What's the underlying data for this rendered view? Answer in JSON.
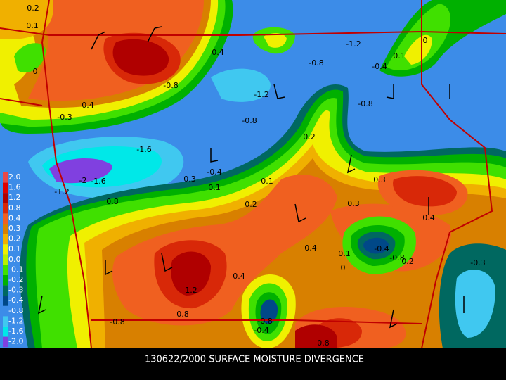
{
  "caption": "130622/2000 SURFACE MOISTURE DIVERGENCE",
  "legend": [
    {
      "label": "2.0",
      "color": "#e84848"
    },
    {
      "label": "1.6",
      "color": "#e00000"
    },
    {
      "label": "1.2",
      "color": "#b00000"
    },
    {
      "label": "0.8",
      "color": "#d82808"
    },
    {
      "label": "0.4",
      "color": "#f06020"
    },
    {
      "label": "0.3",
      "color": "#d88000"
    },
    {
      "label": "0.2",
      "color": "#f0b000"
    },
    {
      "label": "0.1",
      "color": "#f0f000"
    },
    {
      "label": "0.0",
      "color": "#b8f000"
    },
    {
      "label": "-0.1",
      "color": "#40e000"
    },
    {
      "label": "-0.2",
      "color": "#00b000"
    },
    {
      "label": "-0.3",
      "color": "#006860"
    },
    {
      "label": "-0.4",
      "color": "#004888"
    },
    {
      "label": "-0.8",
      "color": "#3c8ce8"
    },
    {
      "label": "-1.2",
      "color": "#40c8f0"
    },
    {
      "label": "-1.6",
      "color": "#00e8e8"
    },
    {
      "label": "-2.0",
      "color": "#8040e0"
    }
  ],
  "contour_labels": [
    "0.2",
    "0.1",
    "0",
    "0.4",
    "-0.3",
    "-0.8",
    "0.4",
    "-1.2",
    "-0.8",
    "-0.8",
    "-1.2",
    "-0.4",
    "0.1",
    "0",
    "-0.8",
    "0.2",
    "-1.6",
    "-2",
    "-1.6",
    "-1.2",
    "0.8",
    "-0.4",
    "0.3",
    "0.1",
    "0.1",
    "0.2",
    "0.3",
    "0.3",
    "0.4",
    "0.4",
    "0.1",
    "0",
    "-0.4",
    "-0.8",
    "0.2",
    "-0.3",
    "0.4",
    "1.2",
    "0.8",
    "-0.8",
    "-0.8",
    "-0.4",
    "0.8"
  ]
}
